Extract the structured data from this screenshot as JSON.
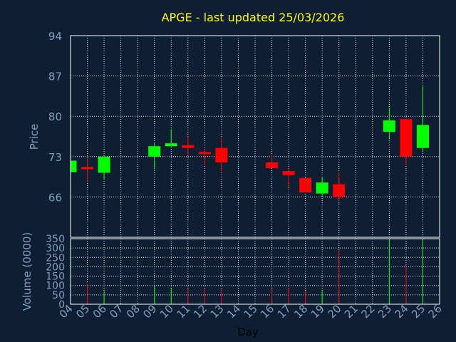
{
  "chart_data": {
    "type": "candlestick",
    "title": "APGE - last updated 25/03/2026",
    "xlabel": "Day",
    "ylabel_price": "Price",
    "ylabel_volume": "Volume (0000)",
    "price_ylim": [
      59,
      94
    ],
    "price_ticks": [
      94,
      87,
      80,
      73,
      66
    ],
    "volume_ylim": [
      0,
      350
    ],
    "volume_ticks": [
      350,
      300,
      250,
      200,
      150,
      100,
      50,
      0
    ],
    "x_ticks": [
      "04",
      "05",
      "06",
      "07",
      "08",
      "09",
      "10",
      "11",
      "12",
      "13",
      "14",
      "15",
      "16",
      "17",
      "18",
      "19",
      "20",
      "21",
      "22",
      "23",
      "24",
      "25",
      "26"
    ],
    "grid": true,
    "colors": {
      "background": "#0f1f33",
      "title": "#ffff00",
      "axis_text": "#7f9fc0",
      "up": "#00ff00",
      "down": "#ff0000",
      "frame": "#ffffff"
    },
    "candles": [
      {
        "day": 4,
        "open": 70.3,
        "close": 72.3,
        "high": 72.3,
        "low": 70.3,
        "volume": 0
      },
      {
        "day": 5,
        "open": 71.2,
        "close": 70.8,
        "high": 72.8,
        "low": 68.7,
        "volume": 110
      },
      {
        "day": 6,
        "open": 70.2,
        "close": 73.0,
        "high": 73.0,
        "low": 69.0,
        "volume": 70
      },
      {
        "day": 9,
        "open": 73.0,
        "close": 74.8,
        "high": 75.3,
        "low": 70.8,
        "volume": 95
      },
      {
        "day": 10,
        "open": 74.8,
        "close": 75.3,
        "high": 77.8,
        "low": 74.8,
        "volume": 85
      },
      {
        "day": 11,
        "open": 75.0,
        "close": 74.5,
        "high": 76.5,
        "low": 73.3,
        "volume": 80
      },
      {
        "day": 12,
        "open": 73.8,
        "close": 73.5,
        "high": 74.3,
        "low": 71.5,
        "volume": 80
      },
      {
        "day": 13,
        "open": 74.5,
        "close": 72.0,
        "high": 76.2,
        "low": 70.5,
        "volume": 80
      },
      {
        "day": 16,
        "open": 72.0,
        "close": 71.0,
        "high": 73.3,
        "low": 71.0,
        "volume": 80
      },
      {
        "day": 17,
        "open": 70.5,
        "close": 69.8,
        "high": 70.8,
        "low": 67.8,
        "volume": 90
      },
      {
        "day": 18,
        "open": 69.3,
        "close": 66.8,
        "high": 69.3,
        "low": 66.6,
        "volume": 70
      },
      {
        "day": 19,
        "open": 66.6,
        "close": 68.5,
        "high": 69.5,
        "low": 66.2,
        "volume": 70
      },
      {
        "day": 20,
        "open": 68.2,
        "close": 66.0,
        "high": 70.3,
        "low": 65.3,
        "volume": 290
      },
      {
        "day": 23,
        "open": 77.3,
        "close": 79.3,
        "high": 81.5,
        "low": 76.0,
        "volume": 350
      },
      {
        "day": 24,
        "open": 79.5,
        "close": 73.0,
        "high": 79.5,
        "low": 71.5,
        "volume": 210
      },
      {
        "day": 25,
        "open": 74.5,
        "close": 78.5,
        "high": 85.2,
        "low": 74.0,
        "volume": 350
      }
    ]
  }
}
